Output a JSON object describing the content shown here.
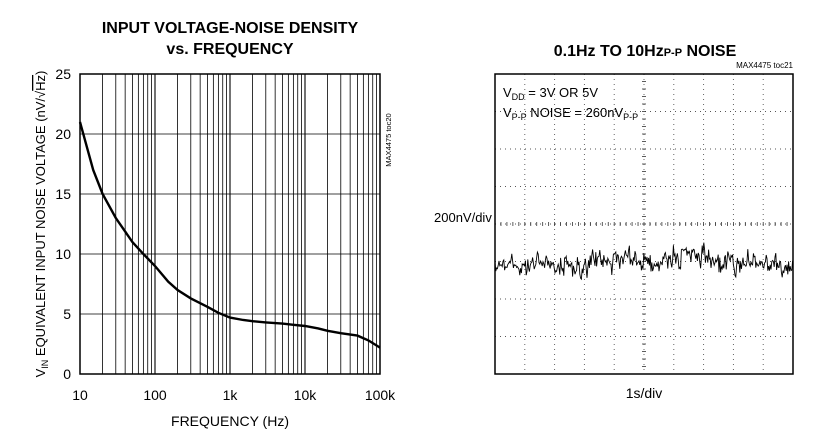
{
  "chart_data": [
    {
      "type": "line",
      "title_line1": "INPUT VOLTAGE-NOISE DENSITY",
      "title_line2": "vs. FREQUENCY",
      "xlabel": "FREQUENCY (Hz)",
      "ylabel_prefix": "V",
      "ylabel_sub": "IN",
      "ylabel_rest": " EQUIVALENT INPUT NOISE VOLTAGE (nV/√",
      "ylabel_hz": "Hz",
      "ylabel_close": ")",
      "tag": "MAX4475 toc20",
      "xscale": "log",
      "xlim": [
        10,
        100000
      ],
      "ylim": [
        0,
        25
      ],
      "xticks": [
        10,
        100,
        1000,
        10000,
        100000
      ],
      "xtick_labels": [
        "10",
        "100",
        "1k",
        "10k",
        "100k"
      ],
      "yticks": [
        0,
        5,
        10,
        15,
        20,
        25
      ],
      "ytick_labels": [
        "0",
        "5",
        "10",
        "15",
        "20",
        "25"
      ],
      "grid": true,
      "series": [
        {
          "x": [
            10,
            15,
            20,
            30,
            50,
            70,
            100,
            150,
            200,
            300,
            500,
            700,
            1000,
            1500,
            2000,
            3000,
            5000,
            7000,
            10000,
            15000,
            20000,
            30000,
            50000,
            70000,
            100000
          ],
          "y": [
            21.0,
            17.0,
            15.0,
            13.0,
            11.0,
            10.0,
            9.0,
            7.7,
            7.0,
            6.3,
            5.6,
            5.1,
            4.7,
            4.5,
            4.4,
            4.3,
            4.2,
            4.1,
            4.0,
            3.8,
            3.6,
            3.4,
            3.2,
            2.8,
            2.2
          ]
        }
      ]
    },
    {
      "type": "line",
      "title_main": "0.1Hz TO 10Hz",
      "title_sub": "P-P",
      "title_end": " NOISE",
      "tag": "MAX4475 toc21",
      "xlabel": "1s/div",
      "ylabel": "200nV/div",
      "annotation1_prefix": "V",
      "annotation1_sub": "DD",
      "annotation1_rest": " = 3V OR 5V",
      "annotation2_prefix": "V",
      "annotation2_sub": "P-P",
      "annotation2_mid": " NOISE = 260nV",
      "annotation2_sub2": "P-P",
      "x_divisions": 10,
      "y_divisions": 8,
      "grid": "dotted",
      "trace_center_div": 5.0,
      "trace_peak_to_peak_nV": 260
    }
  ]
}
